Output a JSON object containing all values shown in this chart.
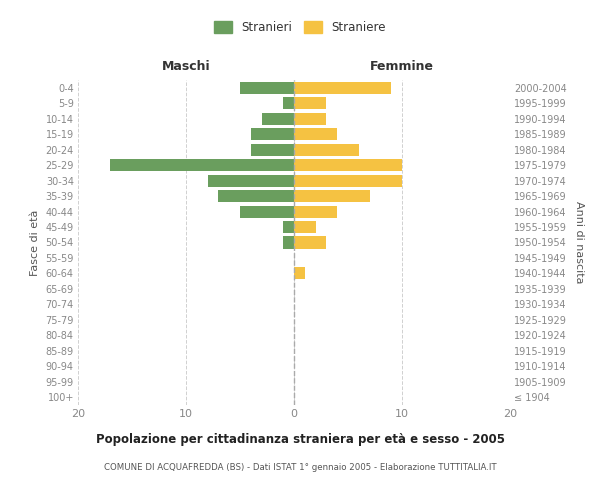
{
  "age_groups": [
    "100+",
    "95-99",
    "90-94",
    "85-89",
    "80-84",
    "75-79",
    "70-74",
    "65-69",
    "60-64",
    "55-59",
    "50-54",
    "45-49",
    "40-44",
    "35-39",
    "30-34",
    "25-29",
    "20-24",
    "15-19",
    "10-14",
    "5-9",
    "0-4"
  ],
  "birth_years": [
    "≤ 1904",
    "1905-1909",
    "1910-1914",
    "1915-1919",
    "1920-1924",
    "1925-1929",
    "1930-1934",
    "1935-1939",
    "1940-1944",
    "1945-1949",
    "1950-1954",
    "1955-1959",
    "1960-1964",
    "1965-1969",
    "1970-1974",
    "1975-1979",
    "1980-1984",
    "1985-1989",
    "1990-1994",
    "1995-1999",
    "2000-2004"
  ],
  "males": [
    0,
    0,
    0,
    0,
    0,
    0,
    0,
    0,
    0,
    0,
    1,
    1,
    5,
    7,
    8,
    17,
    4,
    4,
    3,
    1,
    5
  ],
  "females": [
    0,
    0,
    0,
    0,
    0,
    0,
    0,
    0,
    1,
    0,
    3,
    2,
    4,
    7,
    10,
    10,
    6,
    4,
    3,
    3,
    9
  ],
  "male_color": "#6a9e5e",
  "female_color": "#f5c242",
  "title": "Popolazione per cittadinanza straniera per età e sesso - 2005",
  "subtitle": "COMUNE DI ACQUAFREDDA (BS) - Dati ISTAT 1° gennaio 2005 - Elaborazione TUTTITALIA.IT",
  "xlabel_left": "Maschi",
  "xlabel_right": "Femmine",
  "ylabel_left": "Fasce di età",
  "ylabel_right": "Anni di nascita",
  "legend_male": "Stranieri",
  "legend_female": "Straniere",
  "xlim": 20,
  "background_color": "#ffffff",
  "grid_color": "#d0d0d0",
  "axis_label_color": "#555555",
  "tick_label_color": "#888888",
  "dashed_line_color": "#aaaaaa"
}
